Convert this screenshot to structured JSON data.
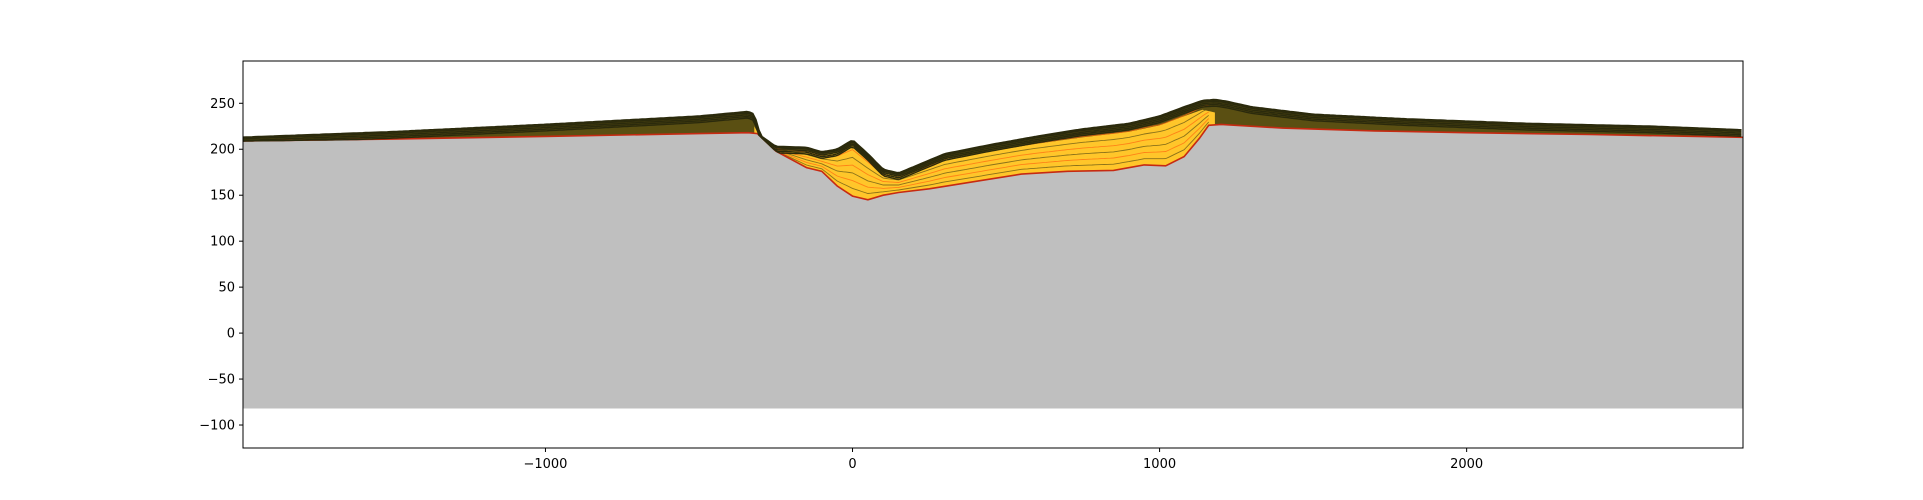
{
  "chart_data": {
    "type": "area",
    "title": "",
    "xlabel": "",
    "ylabel": "",
    "xlim": [
      -1985,
      2900
    ],
    "ylim": [
      -125,
      296
    ],
    "grid": false,
    "legend": "none",
    "x_ticks": [
      -1000,
      0,
      1000,
      2000
    ],
    "y_ticks": [
      -100,
      -50,
      0,
      50,
      100,
      150,
      200,
      250
    ],
    "x_tick_labels": [
      "−1000",
      "0",
      "1000",
      "2000"
    ],
    "y_tick_labels": [
      "−100",
      "−50",
      "0",
      "50",
      "100",
      "150",
      "200",
      "250"
    ],
    "colors": {
      "basement": "#bfbfbf",
      "deep_layer": "#ff6510",
      "mid_layer": "#ff9a1e",
      "upper_layer": "#ffc62a",
      "dark_bands": "#2b2a0c",
      "olive_bands": "#5a4f12",
      "red_seam": "#c62a12"
    },
    "basement": {
      "name": "basement",
      "bottom": -82,
      "x": [
        -1985,
        -1500,
        -1000,
        -500,
        -340,
        -310,
        -250,
        -150,
        -100,
        -50,
        0,
        50,
        100,
        150,
        250,
        400,
        550,
        700,
        850,
        950,
        1020,
        1080,
        1130,
        1160,
        1200,
        1400,
        1700,
        2000,
        2400,
        2900
      ],
      "top": [
        209,
        211,
        214,
        217,
        218,
        217,
        198,
        180,
        176,
        160,
        149,
        145,
        150,
        153,
        157,
        165,
        173,
        176,
        177,
        183,
        182,
        192,
        212,
        226,
        227,
        223,
        220,
        218,
        216,
        213
      ]
    },
    "surface": {
      "name": "surface",
      "x": [
        -1985,
        -1500,
        -1000,
        -500,
        -340,
        -320,
        -300,
        -250,
        -150,
        -100,
        -50,
        0,
        50,
        100,
        150,
        200,
        300,
        450,
        600,
        750,
        900,
        1000,
        1080,
        1140,
        1180,
        1220,
        1300,
        1500,
        1800,
        2200,
        2600,
        2900
      ],
      "y": [
        213,
        219,
        227,
        236,
        241,
        238,
        215,
        203,
        202,
        197,
        200,
        210,
        195,
        178,
        174,
        181,
        195,
        205,
        214,
        222,
        228,
        236,
        246,
        253,
        254,
        252,
        246,
        238,
        233,
        228,
        225,
        221
      ]
    },
    "basin_layers": [
      {
        "name": "deep_layer",
        "x": [
          -300,
          -250,
          -150,
          -100,
          -50,
          0,
          50,
          100,
          150,
          250,
          400,
          550,
          700,
          850,
          950,
          1020,
          1080,
          1130,
          1160
        ],
        "y": [
          208,
          196,
          186,
          184,
          172,
          162,
          158,
          162,
          165,
          168,
          174,
          180,
          182,
          183,
          188,
          188,
          196,
          214,
          228
        ]
      },
      {
        "name": "mid_layer",
        "x": [
          -300,
          -250,
          -150,
          -100,
          -50,
          0,
          50,
          100,
          150,
          250,
          400,
          550,
          700,
          850,
          950,
          1020,
          1080,
          1130,
          1160
        ],
        "y": [
          210,
          199,
          192,
          188,
          182,
          176,
          172,
          169,
          170,
          174,
          180,
          186,
          188,
          190,
          195,
          196,
          203,
          218,
          230
        ]
      },
      {
        "name": "upper_layer",
        "x": [
          -320,
          -300,
          -250,
          -150,
          -100,
          -50,
          0,
          50,
          100,
          150,
          200,
          300,
          450,
          600,
          750,
          900,
          1000,
          1080,
          1140,
          1180
        ],
        "y": [
          225,
          212,
          200,
          199,
          194,
          196,
          204,
          190,
          174,
          170,
          176,
          189,
          198,
          206,
          213,
          219,
          226,
          236,
          243,
          240
        ]
      }
    ],
    "dark_bands": [
      {
        "name": "cap_band_1",
        "offset": 1.6
      },
      {
        "name": "cap_band_2",
        "offset": 3.4
      },
      {
        "name": "cap_band_3",
        "offset": 5.2
      },
      {
        "name": "cap_band_4",
        "offset": 7.0
      }
    ]
  }
}
